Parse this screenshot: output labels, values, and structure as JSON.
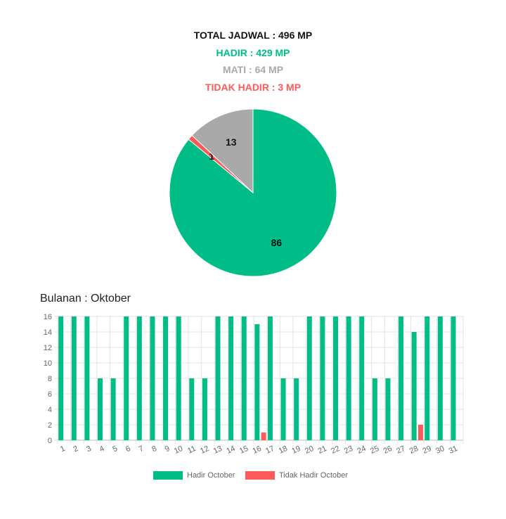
{
  "summary": {
    "total": "TOTAL JADWAL : 496 MP",
    "hadir": "HADIR : 429 MP",
    "mati": "MATI : 64 MP",
    "tidak": "TIDAK HADIR : 3 MP"
  },
  "colors": {
    "hadir": "#00bd87",
    "mati": "#a9a9a9",
    "tidak": "#fe5a5a"
  },
  "monthly_title": "Bulanan : Oktober",
  "chart_data": [
    {
      "type": "pie",
      "slices": [
        {
          "label": "Hadir",
          "value": 86,
          "color": "#00bd87"
        },
        {
          "label": "Tidak Hadir",
          "value": 1,
          "color": "#fe5a5a"
        },
        {
          "label": "Mati",
          "value": 13,
          "color": "#a9a9a9"
        }
      ]
    },
    {
      "type": "bar",
      "categories": [
        "1",
        "2",
        "3",
        "4",
        "5",
        "6",
        "7",
        "8",
        "9",
        "10",
        "11",
        "12",
        "13",
        "14",
        "15",
        "16",
        "17",
        "18",
        "19",
        "20",
        "21",
        "22",
        "23",
        "24",
        "25",
        "26",
        "27",
        "28",
        "29",
        "30",
        "31"
      ],
      "series": [
        {
          "name": "Hadir October",
          "color": "#00bd87",
          "values": [
            16,
            16,
            16,
            8,
            8,
            16,
            16,
            16,
            16,
            16,
            8,
            8,
            16,
            16,
            16,
            15,
            16,
            8,
            8,
            16,
            16,
            16,
            16,
            16,
            8,
            8,
            16,
            14,
            16,
            16,
            16
          ]
        },
        {
          "name": "Tidak Hadir October",
          "color": "#fe5a5a",
          "values": [
            0,
            0,
            0,
            0,
            0,
            0,
            0,
            0,
            0,
            0,
            0,
            0,
            0,
            0,
            0,
            1,
            0,
            0,
            0,
            0,
            0,
            0,
            0,
            0,
            0,
            0,
            0,
            2,
            0,
            0,
            0
          ]
        }
      ],
      "ylim": [
        0,
        16
      ],
      "yticks": [
        0,
        2,
        4,
        6,
        8,
        10,
        12,
        14,
        16
      ],
      "grid": true,
      "legend": "bottom"
    }
  ]
}
